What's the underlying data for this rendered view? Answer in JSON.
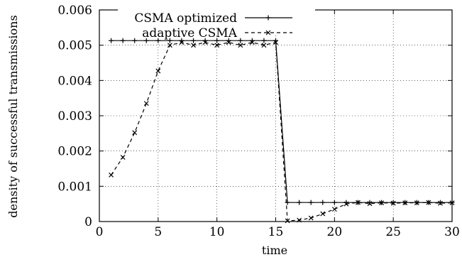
{
  "chart_data": {
    "type": "line",
    "title": "",
    "xlabel": "time",
    "ylabel": "density of successful transmissions",
    "xlim": [
      0,
      30
    ],
    "ylim": [
      0,
      0.006
    ],
    "x_ticks": [
      "0",
      "5",
      "10",
      "15",
      "20",
      "25",
      "30"
    ],
    "y_ticks": [
      "0",
      "0.001",
      "0.002",
      "0.003",
      "0.004",
      "0.005",
      "0.006"
    ],
    "grid": true,
    "legend_position": "top-right",
    "series": [
      {
        "name": "CSMA optimized",
        "line_style": "solid",
        "marker": "plus",
        "x": [
          1,
          2,
          3,
          4,
          5,
          6,
          7,
          8,
          9,
          10,
          11,
          12,
          13,
          14,
          15,
          16,
          17,
          18,
          19,
          20,
          21,
          22,
          23,
          24,
          25,
          26,
          27,
          28,
          29,
          30
        ],
        "values": [
          0.00513,
          0.00513,
          0.00513,
          0.00513,
          0.00513,
          0.00513,
          0.00513,
          0.00513,
          0.00513,
          0.00513,
          0.00513,
          0.00513,
          0.00513,
          0.00513,
          0.00513,
          0.00054,
          0.00054,
          0.00054,
          0.00054,
          0.00054,
          0.00054,
          0.00054,
          0.00054,
          0.00054,
          0.00054,
          0.00054,
          0.00054,
          0.00054,
          0.00054,
          0.00054
        ]
      },
      {
        "name": "adaptive CSMA",
        "line_style": "dashed",
        "marker": "cross",
        "x": [
          1,
          2,
          3,
          4,
          5,
          6,
          7,
          8,
          9,
          10,
          11,
          12,
          13,
          14,
          15,
          16,
          17,
          18,
          19,
          20,
          21,
          22,
          23,
          24,
          25,
          26,
          27,
          28,
          29,
          30
        ],
        "values": [
          0.00132,
          0.00182,
          0.00252,
          0.00335,
          0.00427,
          0.005,
          0.00508,
          0.005,
          0.00508,
          0.005,
          0.00508,
          0.005,
          0.00508,
          0.005,
          0.00508,
          2e-05,
          4e-05,
          0.0001,
          0.00022,
          0.00035,
          0.0005,
          0.00054,
          0.00051,
          0.00053,
          0.00052,
          0.00053,
          0.00053,
          0.00054,
          0.00052,
          0.00053
        ]
      }
    ]
  }
}
